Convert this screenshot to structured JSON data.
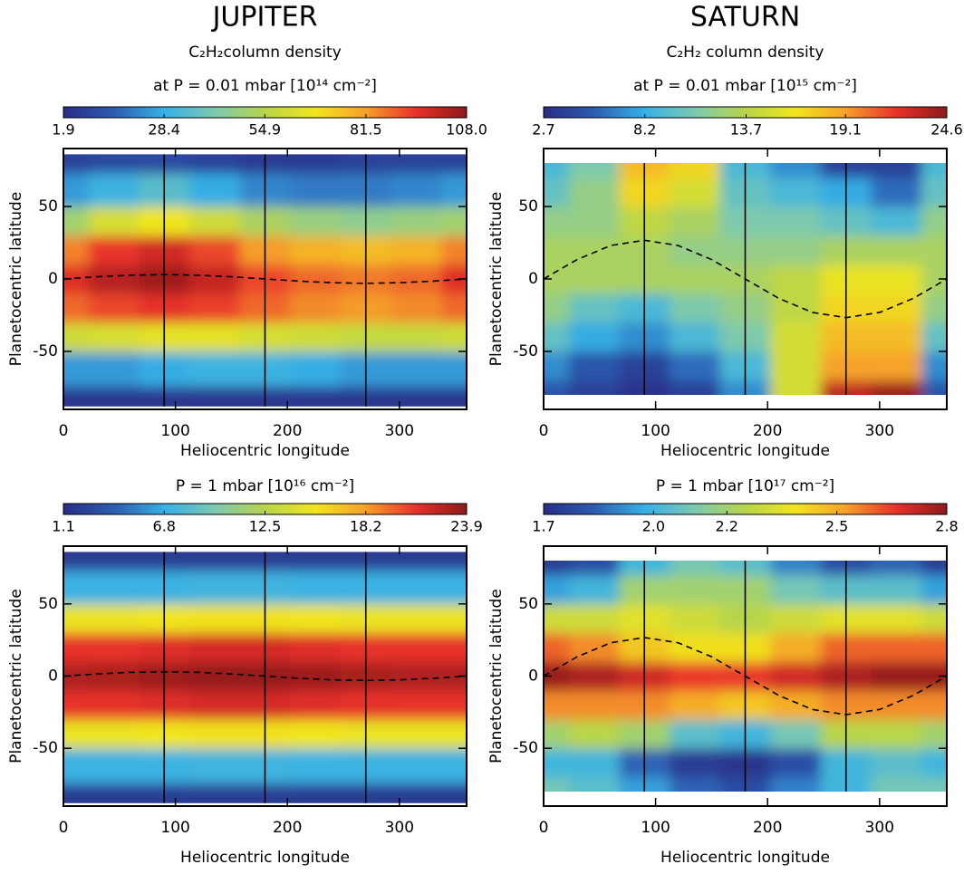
{
  "chart_data": [
    {
      "type": "heatmap",
      "title": "JUPITER",
      "colorbar_label": [
        "C₂H₂column density",
        "at P = 0.01 mbar  [10¹⁴ cm⁻²]"
      ],
      "xlabel": "Heliocentric longitude",
      "ylabel": "Planetocentric latitude",
      "x": [
        0,
        45,
        90,
        135,
        180,
        225,
        270,
        315,
        360
      ],
      "y": [
        -88,
        -60,
        -40,
        -20,
        0,
        20,
        40,
        60,
        86
      ],
      "z": [
        [
          5,
          5,
          5,
          5,
          5,
          5,
          5,
          5,
          5
        ],
        [
          25,
          25,
          28,
          30,
          30,
          28,
          25,
          25,
          25
        ],
        [
          60,
          62,
          65,
          65,
          62,
          60,
          58,
          58,
          60
        ],
        [
          88,
          92,
          95,
          93,
          88,
          84,
          82,
          84,
          88
        ],
        [
          96,
          102,
          105,
          100,
          92,
          88,
          86,
          88,
          96
        ],
        [
          85,
          94,
          98,
          92,
          82,
          78,
          76,
          78,
          85
        ],
        [
          50,
          62,
          68,
          60,
          52,
          48,
          46,
          48,
          50
        ],
        [
          25,
          30,
          35,
          28,
          22,
          20,
          20,
          22,
          25
        ],
        [
          8,
          10,
          10,
          8,
          6,
          6,
          8,
          8,
          8
        ]
      ],
      "zlim": [
        1.9,
        108
      ],
      "zticks": [
        1.9,
        28.4,
        54.9,
        81.5,
        {
          "value": 108,
          "label": "108.0"
        }
      ],
      "xlim": [
        0,
        360
      ],
      "xticks": [
        0,
        100,
        200,
        300
      ],
      "ylim": [
        -90,
        90
      ],
      "yticks": [
        -50,
        0,
        50
      ],
      "vlines": [
        90,
        180,
        270
      ],
      "line": {
        "x": [
          0,
          30,
          60,
          90,
          120,
          150,
          180,
          210,
          240,
          270,
          300,
          330,
          360
        ],
        "values": [
          0,
          1.5,
          2.6,
          3,
          2.6,
          1.5,
          0,
          -1.5,
          -2.6,
          -3,
          -2.6,
          -1.5,
          0
        ],
        "style": "dashed"
      },
      "colors": [
        "#282d86",
        "#2d5bb0",
        "#36b0e6",
        "#7cc9b0",
        "#b8d54a",
        "#f1e51d",
        "#f6a02a",
        "#e8302a",
        "#8b1a1a"
      ]
    },
    {
      "type": "heatmap",
      "title": "SATURN",
      "colorbar_label": [
        "C₂H₂ column density",
        "at P = 0.01 mbar   [10¹⁵ cm⁻²]"
      ],
      "xlabel": "Heliocentric longitude",
      "ylabel": "Planetocentric latitude",
      "x": [
        0,
        45,
        90,
        135,
        180,
        225,
        270,
        315,
        360
      ],
      "y": [
        -80,
        -60,
        -40,
        -20,
        0,
        20,
        40,
        60,
        80
      ],
      "z": [
        [
          5,
          4,
          3,
          4,
          7,
          15,
          23,
          24,
          5
        ],
        [
          7,
          5,
          4,
          6,
          9,
          15,
          19,
          19,
          7
        ],
        [
          10,
          8,
          7,
          9,
          11,
          15,
          18,
          18,
          10
        ],
        [
          12,
          10,
          9,
          11,
          12,
          14,
          17,
          17,
          12
        ],
        [
          13,
          13,
          13,
          13,
          13,
          14,
          16,
          16,
          13
        ],
        [
          13,
          13,
          13,
          12,
          12,
          12,
          13,
          13,
          13
        ],
        [
          12,
          12,
          14,
          13,
          11,
          11,
          10,
          9,
          12
        ],
        [
          10,
          12,
          17,
          15,
          10,
          9,
          8,
          6,
          10
        ],
        [
          9,
          11,
          18,
          17,
          9,
          7,
          4,
          4,
          9
        ]
      ],
      "zlim": [
        2.7,
        24.6
      ],
      "zticks": [
        2.7,
        8.2,
        13.7,
        19.1,
        24.6
      ],
      "xlim": [
        0,
        360
      ],
      "xticks": [
        0,
        100,
        200,
        300
      ],
      "ylim": [
        -90,
        90
      ],
      "yticks": [
        -50,
        0,
        50
      ],
      "vlines": [
        90,
        180,
        270
      ],
      "line": {
        "x": [
          0,
          30,
          60,
          90,
          120,
          150,
          180,
          210,
          240,
          270,
          300,
          330,
          360
        ],
        "values": [
          0,
          13.4,
          23.1,
          26.7,
          23.1,
          13.4,
          0,
          -13.4,
          -23.1,
          -26.7,
          -23.1,
          -13.4,
          0
        ],
        "style": "dashed"
      },
      "colors": [
        "#282d86",
        "#2d5bb0",
        "#36b0e6",
        "#7cc9b0",
        "#b8d54a",
        "#f1e51d",
        "#f6a02a",
        "#e8302a",
        "#8b1a1a"
      ]
    },
    {
      "type": "heatmap",
      "colorbar_label": [
        "P = 1 mbar   [10¹⁶ cm⁻²]"
      ],
      "xlabel": "Heliocentric longitude",
      "ylabel": "Planetocentric latitude",
      "x": [
        0,
        45,
        90,
        135,
        180,
        225,
        270,
        315,
        360
      ],
      "y": [
        -88,
        -60,
        -40,
        -20,
        0,
        20,
        40,
        60,
        86
      ],
      "z": [
        [
          2,
          2,
          2,
          2,
          2,
          2,
          2,
          2,
          2
        ],
        [
          7,
          7,
          7,
          7.2,
          7.2,
          7,
          7,
          7,
          7
        ],
        [
          15,
          15,
          15.3,
          15.5,
          15.5,
          15.3,
          15,
          15,
          15
        ],
        [
          21,
          21,
          21.3,
          21.6,
          21.6,
          21.3,
          21,
          21,
          21
        ],
        [
          22.8,
          23,
          23.3,
          23.6,
          23.6,
          23.3,
          23,
          22.8,
          22.8
        ],
        [
          21,
          21,
          21.3,
          21.6,
          21.6,
          21.3,
          21,
          21,
          21
        ],
        [
          15,
          15,
          15.3,
          15.5,
          15.5,
          15.3,
          15,
          15,
          15
        ],
        [
          7,
          7,
          7,
          7.2,
          7.2,
          7,
          7,
          7,
          7
        ],
        [
          2,
          2,
          2,
          2,
          2,
          2,
          2,
          2,
          2
        ]
      ],
      "zlim": [
        1.1,
        23.9
      ],
      "zticks": [
        1.1,
        6.8,
        12.5,
        18.2,
        23.9
      ],
      "xlim": [
        0,
        360
      ],
      "xticks": [
        0,
        100,
        200,
        300
      ],
      "ylim": [
        -90,
        90
      ],
      "yticks": [
        -50,
        0,
        50
      ],
      "vlines": [
        90,
        180,
        270
      ],
      "line": {
        "x": [
          0,
          30,
          60,
          90,
          120,
          150,
          180,
          210,
          240,
          270,
          300,
          330,
          360
        ],
        "values": [
          0,
          1.5,
          2.6,
          3,
          2.6,
          1.5,
          0,
          -1.5,
          -2.6,
          -3,
          -2.6,
          -1.5,
          0
        ],
        "style": "dashed"
      },
      "colors": [
        "#282d86",
        "#2d5bb0",
        "#36b0e6",
        "#7cc9b0",
        "#b8d54a",
        "#f1e51d",
        "#f6a02a",
        "#e8302a",
        "#8b1a1a"
      ]
    },
    {
      "type": "heatmap",
      "colorbar_label": [
        "P = 1 mbar   [10¹⁷ cm⁻²]"
      ],
      "xlabel": "Heliocentric longitude",
      "ylabel": "Planetocentric latitude",
      "x": [
        0,
        45,
        90,
        135,
        180,
        225,
        270,
        315,
        360
      ],
      "y": [
        -80,
        -60,
        -40,
        -20,
        0,
        20,
        40,
        60,
        80
      ],
      "z": [
        [
          2.1,
          2.05,
          1.95,
          1.85,
          1.8,
          1.9,
          2.0,
          2.1,
          2.1
        ],
        [
          2.0,
          2.0,
          1.85,
          1.75,
          1.72,
          1.8,
          2.0,
          2.05,
          2.0
        ],
        [
          2.2,
          2.25,
          2.2,
          2.05,
          2.0,
          2.1,
          2.25,
          2.25,
          2.2
        ],
        [
          2.55,
          2.55,
          2.55,
          2.5,
          2.45,
          2.5,
          2.55,
          2.55,
          2.55
        ],
        [
          2.78,
          2.75,
          2.7,
          2.65,
          2.65,
          2.7,
          2.75,
          2.78,
          2.78
        ],
        [
          2.6,
          2.55,
          2.45,
          2.4,
          2.4,
          2.5,
          2.6,
          2.6,
          2.6
        ],
        [
          2.3,
          2.3,
          2.35,
          2.3,
          2.25,
          2.3,
          2.35,
          2.35,
          2.3
        ],
        [
          1.95,
          2.0,
          2.2,
          2.2,
          2.2,
          2.1,
          2.05,
          2.05,
          1.95
        ],
        [
          1.75,
          1.8,
          2.0,
          2.1,
          2.05,
          1.9,
          1.8,
          1.85,
          1.75
        ]
      ],
      "zlim": [
        1.7,
        2.8
      ],
      "zticks": [
        1.7,
        {
          "value": 2,
          "label": "2.0"
        },
        2.2,
        2.5,
        2.8
      ],
      "xlim": [
        0,
        360
      ],
      "xticks": [
        0,
        100,
        200,
        300
      ],
      "ylim": [
        -90,
        90
      ],
      "yticks": [
        -50,
        0,
        50
      ],
      "vlines": [
        90,
        180,
        270
      ],
      "line": {
        "x": [
          0,
          30,
          60,
          90,
          120,
          150,
          180,
          210,
          240,
          270,
          300,
          330,
          360
        ],
        "values": [
          0,
          13.4,
          23.1,
          26.7,
          23.1,
          13.4,
          0,
          -13.4,
          -23.1,
          -26.7,
          -23.1,
          -13.4,
          0
        ],
        "style": "dashed"
      },
      "colors": [
        "#282d86",
        "#2d5bb0",
        "#36b0e6",
        "#7cc9b0",
        "#b8d54a",
        "#f1e51d",
        "#f6a02a",
        "#e8302a",
        "#8b1a1a"
      ]
    }
  ]
}
